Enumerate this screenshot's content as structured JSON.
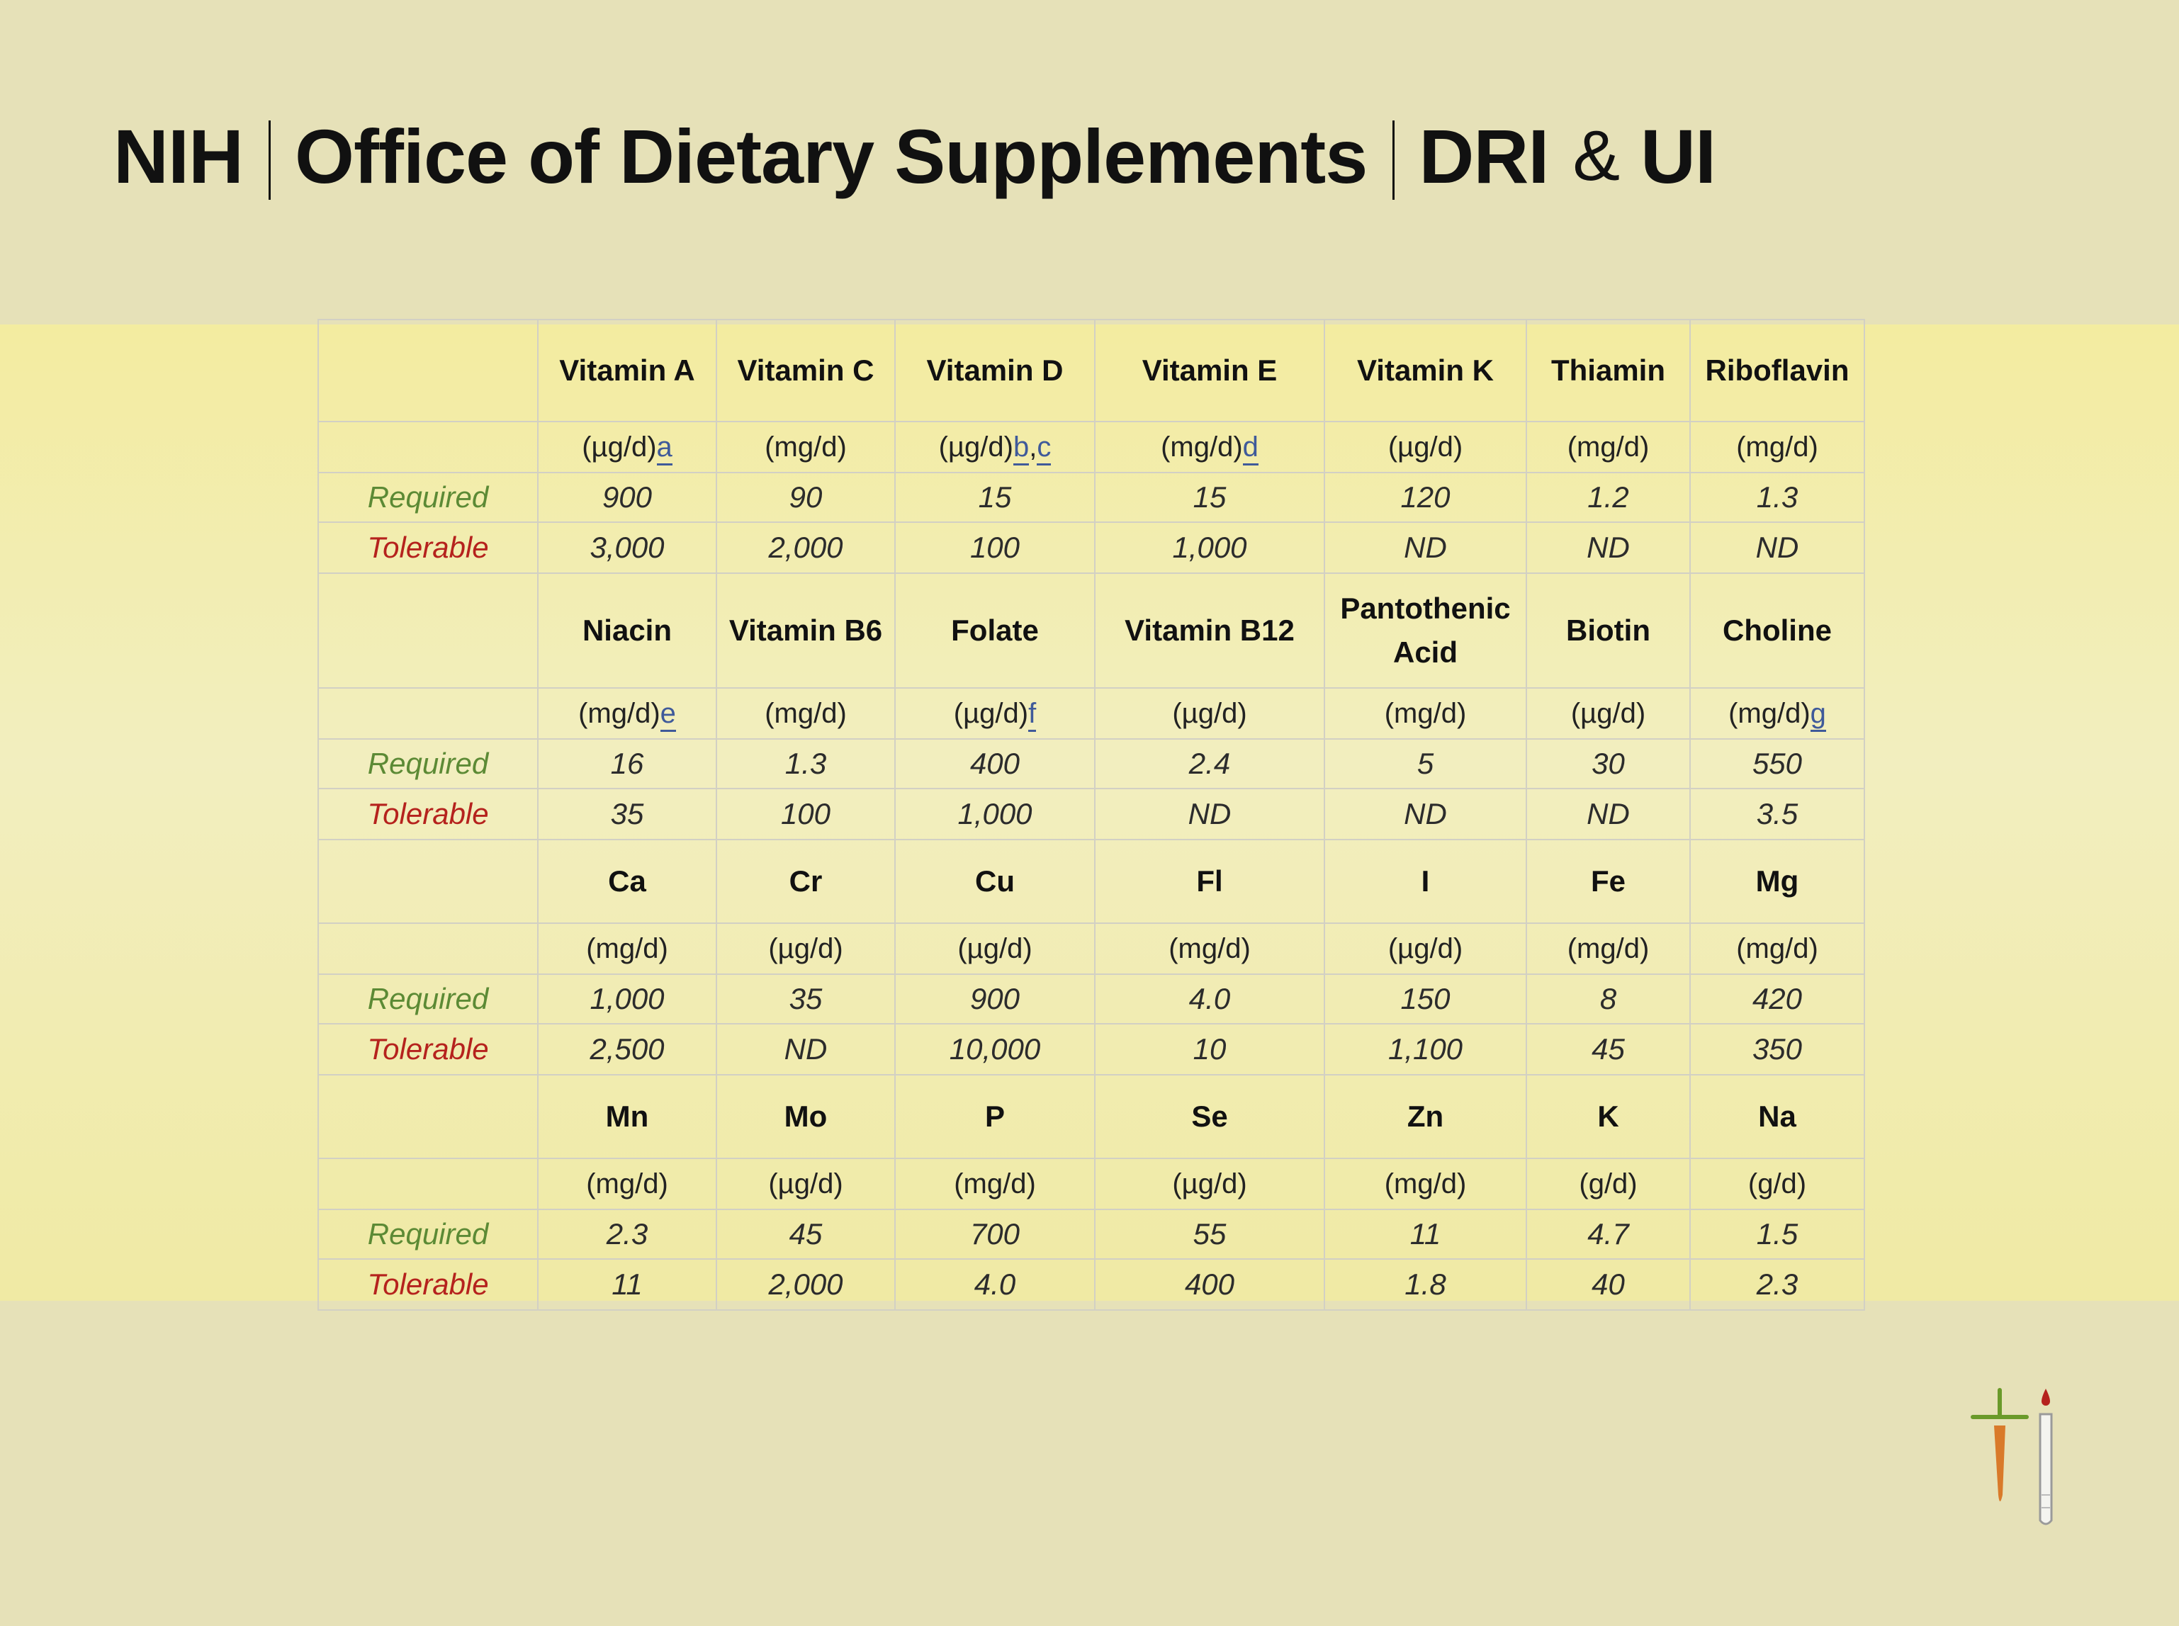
{
  "title": {
    "nih": "NIH",
    "office": "Office of Dietary Supplements",
    "dri": "DRI",
    "amp": "&",
    "ui": "UI"
  },
  "labels": {
    "required": "Required",
    "tolerable": "Tolerable"
  },
  "blocks": [
    {
      "names": [
        "Vitamin A",
        "Vitamin C",
        "Vitamin D",
        "Vitamin E",
        "Vitamin K",
        "Thiamin",
        "Riboflavin"
      ],
      "units": [
        {
          "u": "(µg/d)",
          "fn": "a"
        },
        {
          "u": "(mg/d)",
          "fn": ""
        },
        {
          "u": "(µg/d)",
          "fn": "b",
          "fn2": "c"
        },
        {
          "u": "(mg/d)",
          "fn": "d"
        },
        {
          "u": "(µg/d)",
          "fn": ""
        },
        {
          "u": "(mg/d)",
          "fn": ""
        },
        {
          "u": "(mg/d)",
          "fn": ""
        }
      ],
      "required": [
        "900",
        "90",
        "15",
        "15",
        "120",
        "1.2",
        "1.3"
      ],
      "tolerable": [
        "3,000",
        "2,000",
        "100",
        "1,000",
        "ND",
        "ND",
        "ND"
      ]
    },
    {
      "names": [
        "Niacin",
        "Vitamin B6",
        "Folate",
        "Vitamin B12",
        "Pantothenic",
        "Biotin",
        "Choline"
      ],
      "name_line2": [
        "",
        "",
        "",
        "",
        "Acid",
        "",
        ""
      ],
      "units": [
        {
          "u": "(mg/d)",
          "fn": "e"
        },
        {
          "u": "(mg/d)",
          "fn": ""
        },
        {
          "u": "(µg/d)",
          "fn": "f"
        },
        {
          "u": "(µg/d)",
          "fn": ""
        },
        {
          "u": "(mg/d)",
          "fn": ""
        },
        {
          "u": "(µg/d)",
          "fn": ""
        },
        {
          "u": "(mg/d)",
          "fn": "g"
        }
      ],
      "required": [
        "16",
        "1.3",
        "400",
        "2.4",
        "5",
        "30",
        "550"
      ],
      "tolerable": [
        "35",
        "100",
        "1,000",
        "ND",
        "ND",
        "ND",
        "3.5"
      ]
    },
    {
      "names": [
        "Ca",
        "Cr",
        "Cu",
        "Fl",
        "I",
        "Fe",
        "Mg"
      ],
      "units": [
        {
          "u": "(mg/d)",
          "fn": ""
        },
        {
          "u": "(µg/d)",
          "fn": ""
        },
        {
          "u": "(µg/d)",
          "fn": ""
        },
        {
          "u": "(mg/d)",
          "fn": ""
        },
        {
          "u": "(µg/d)",
          "fn": ""
        },
        {
          "u": "(mg/d)",
          "fn": ""
        },
        {
          "u": "(mg/d)",
          "fn": ""
        }
      ],
      "required": [
        "1,000",
        "35",
        "900",
        "4.0",
        "150",
        "8",
        "420"
      ],
      "tolerable": [
        "2,500",
        "ND",
        "10,000",
        "10",
        "1,100",
        "45",
        "350"
      ]
    },
    {
      "names": [
        "Mn",
        "Mo",
        "P",
        "Se",
        "Zn",
        "K",
        "Na"
      ],
      "units": [
        {
          "u": "(mg/d)",
          "fn": ""
        },
        {
          "u": "(µg/d)",
          "fn": ""
        },
        {
          "u": "(mg/d)",
          "fn": ""
        },
        {
          "u": "(µg/d)",
          "fn": ""
        },
        {
          "u": "(mg/d)",
          "fn": ""
        },
        {
          "u": "(g/d)",
          "fn": ""
        },
        {
          "u": "(g/d)",
          "fn": ""
        }
      ],
      "required": [
        "2.3",
        "45",
        "700",
        "55",
        "11",
        "4.7",
        "1.5"
      ],
      "tolerable": [
        "11",
        "2,000",
        "4.0",
        "400",
        "1.8",
        "40",
        "2.3"
      ]
    }
  ],
  "colors": {
    "required_label": "#5c8a35",
    "tolerable_label": "#b5221d",
    "footnote_link": "#3f5a9a",
    "background": "#e6e1b8",
    "band": "#f2eebf"
  },
  "logo": {
    "icons": [
      "carrot-icon",
      "test-tube-icon",
      "blood-drop-icon"
    ]
  }
}
